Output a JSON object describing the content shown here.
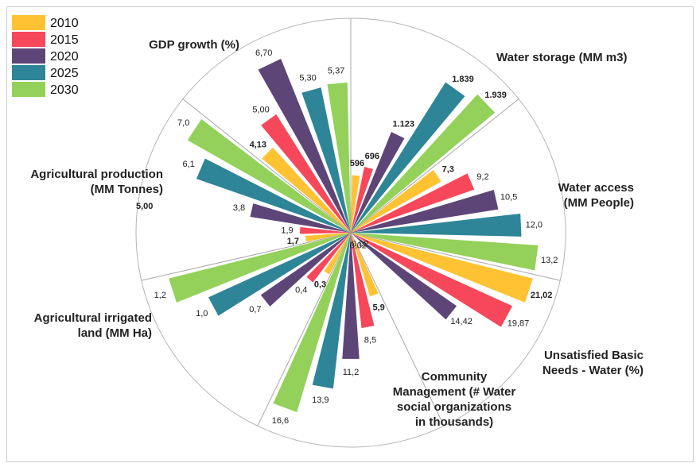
{
  "chart_data": {
    "type": "polar-bar",
    "legend": {
      "placement": "top-left",
      "entries": [
        {
          "name": "2010",
          "color": "#FFC233"
        },
        {
          "name": "2015",
          "color": "#F7485B"
        },
        {
          "name": "2020",
          "color": "#5E4577"
        },
        {
          "name": "2025",
          "color": "#2E8597"
        },
        {
          "name": "2030",
          "color": "#94D15A"
        }
      ]
    },
    "categories": [
      {
        "label": [
          "Water storage (MM m3)"
        ],
        "values": [
          596,
          696,
          1123,
          1839,
          1939
        ],
        "value_labels": [
          "596",
          "696",
          "1.123",
          "1.839",
          "1.939"
        ],
        "bold": [
          true,
          true,
          true,
          true,
          true
        ]
      },
      {
        "label": [
          "Water access",
          "(MM People)"
        ],
        "values": [
          7.3,
          9.2,
          10.5,
          12.0,
          13.2
        ],
        "value_labels": [
          "7,3",
          "9,2",
          "10,5",
          "12,0",
          "13,2"
        ],
        "bold": [
          true,
          false,
          false,
          false,
          false
        ]
      },
      {
        "label": [
          "Unsatisfied Basic",
          "Needs - Water (%)"
        ],
        "values": [
          21.02,
          19.87,
          14.42,
          0.02,
          0.02
        ],
        "value_labels": [
          "21,02",
          "19,87",
          "14,42",
          "0,02",
          "0,02"
        ],
        "bold": [
          true,
          false,
          false,
          false,
          false
        ]
      },
      {
        "label": [
          "Community",
          "Management (# Water",
          "social organizations",
          "in thousands)"
        ],
        "values": [
          5.9,
          8.5,
          11.2,
          13.9,
          16.6
        ],
        "value_labels": [
          "5,9",
          "8,5",
          "11,2",
          "13,9",
          "16,6"
        ],
        "bold": [
          true,
          false,
          false,
          false,
          false
        ]
      },
      {
        "label": [
          "Agricultural irrigated",
          "land (MM Ha)"
        ],
        "values": [
          0.3,
          0.4,
          0.7,
          1.0,
          1.2
        ],
        "value_labels": [
          "0,3",
          "0,4",
          "0,7",
          "1,0",
          "1,2"
        ],
        "bold": [
          true,
          false,
          false,
          false,
          false
        ]
      },
      {
        "label": [
          "Agricultural production",
          "(MM Tonnes)"
        ],
        "values": [
          1.7,
          1.9,
          3.8,
          6.1,
          7.0
        ],
        "value_labels": [
          "1,7",
          "1,9",
          "3,8",
          "6,1",
          "7,0"
        ],
        "bold": [
          true,
          false,
          false,
          false,
          false
        ],
        "extra_label": "5,00"
      },
      {
        "label": [
          "GDP growth (%)"
        ],
        "values": [
          4.13,
          5.0,
          6.7,
          5.3,
          5.37
        ],
        "value_labels": [
          "4,13",
          "5,00",
          "6,70",
          "5,30",
          "5,37"
        ],
        "bold": [
          true,
          false,
          false,
          false,
          false
        ]
      }
    ]
  }
}
